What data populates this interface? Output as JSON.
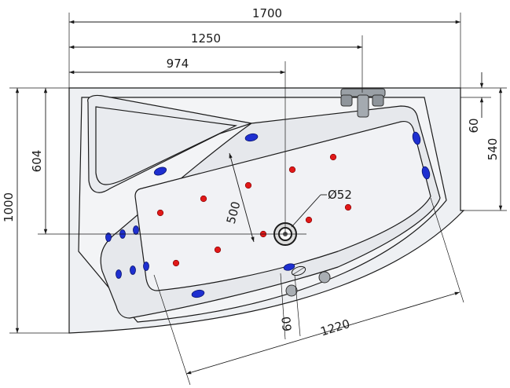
{
  "dimensions": {
    "overall_width": "1700",
    "width_to_faucet": "1250",
    "width_to_drain": "974",
    "overall_depth": "1000",
    "depth_to_drain": "604",
    "right_side_depth": "540",
    "rim_height": "60",
    "inner_width": "500",
    "inner_length": "1220",
    "drain_diameter": "Ø52",
    "bottom_offset": "60"
  },
  "colors": {
    "tub_fill": "#eef0f3",
    "basin_fill": "#e6e8ec",
    "jet_blue": "#1e2fd0",
    "jet_red": "#e01818",
    "line": "#1a1a1a"
  }
}
